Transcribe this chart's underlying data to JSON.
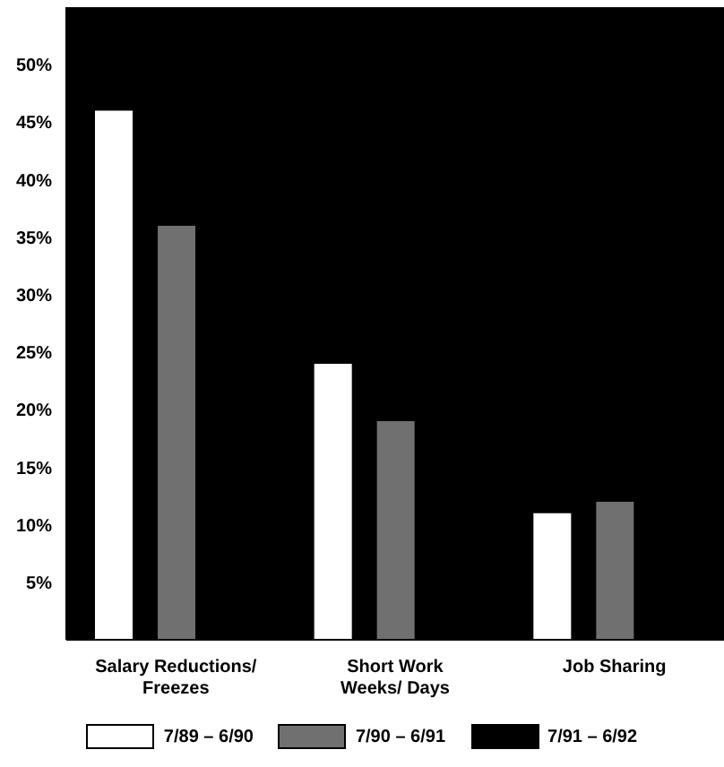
{
  "chart_data": {
    "type": "bar",
    "categories": [
      "Salary Reductions/\nFreezes",
      "Short Work\nWeeks/ Days",
      "Job Sharing"
    ],
    "series": [
      {
        "name": "7/89 – 6/90",
        "color": "#ffffff",
        "values": [
          46,
          24,
          11
        ]
      },
      {
        "name": "7/90 – 6/91",
        "color": "#707070",
        "values": [
          36,
          19,
          12
        ]
      },
      {
        "name": "7/91 – 6/92",
        "color": "#000000",
        "values": [
          null,
          null,
          null
        ]
      }
    ],
    "ylim": [
      0,
      55
    ],
    "yticks": [
      {
        "value": 5,
        "label": "5%"
      },
      {
        "value": 10,
        "label": "10%"
      },
      {
        "value": 15,
        "label": "15%"
      },
      {
        "value": 20,
        "label": "20%"
      },
      {
        "value": 25,
        "label": "25%"
      },
      {
        "value": 30,
        "label": "30%"
      },
      {
        "value": 35,
        "label": "35%"
      },
      {
        "value": 40,
        "label": "40%"
      },
      {
        "value": 45,
        "label": "45%"
      },
      {
        "value": 50,
        "label": "50%"
      }
    ],
    "legend": "bottom"
  }
}
